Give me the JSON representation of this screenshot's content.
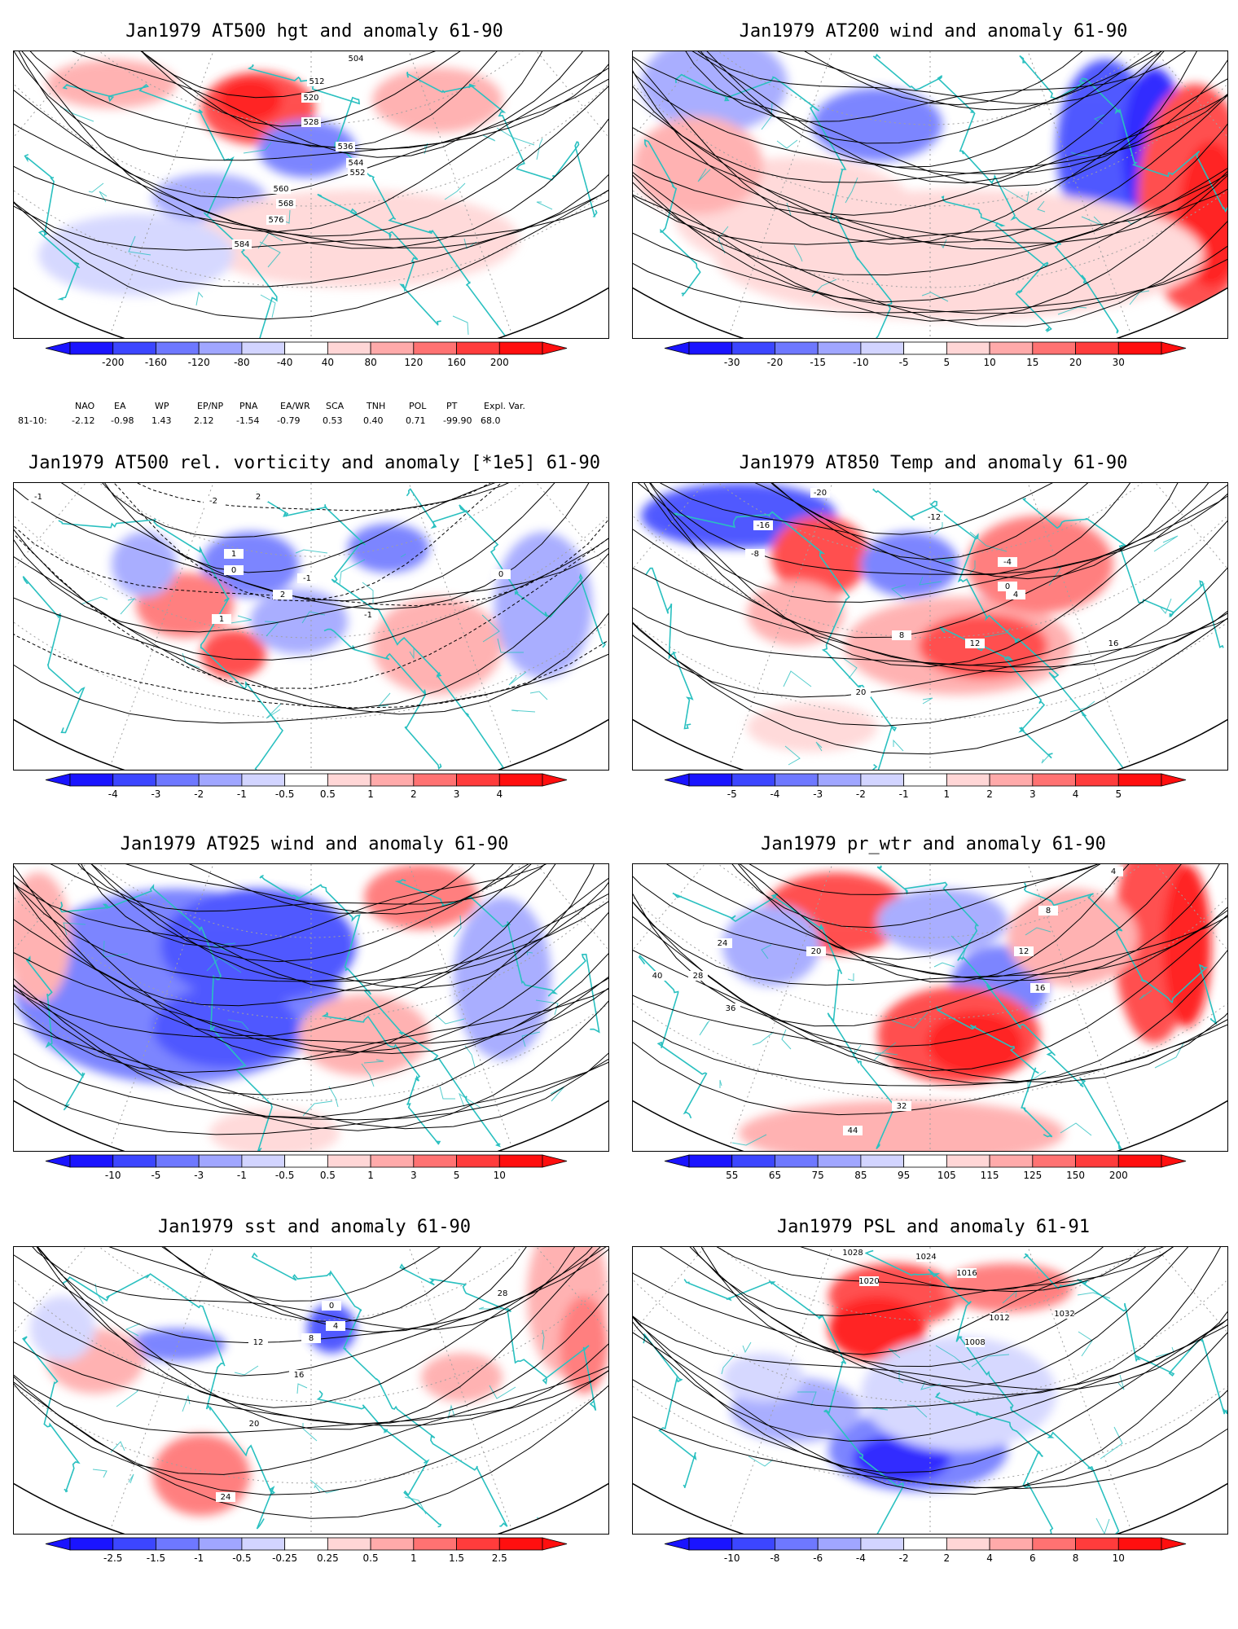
{
  "panels": [
    {
      "title": "Jan1979 AT500 hgt and anomaly 61-90",
      "colorbar": [
        "-200",
        "-160",
        "-120",
        "-80",
        "-40",
        "40",
        "80",
        "120",
        "160",
        "200"
      ],
      "contour_labels": [
        "504",
        "512",
        "520",
        "528",
        "536",
        "544",
        "552",
        "560",
        "568",
        "576",
        "584"
      ]
    },
    {
      "title": "Jan1979 AT200 wind and anomaly 61-90",
      "colorbar": [
        "-30",
        "-20",
        "-15",
        "-10",
        "-5",
        "5",
        "10",
        "15",
        "20",
        "30"
      ],
      "contour_labels": []
    },
    {
      "title": "Jan1979 AT500 rel. vorticity and anomaly [*1e5] 61-90",
      "colorbar": [
        "-4",
        "-3",
        "-2",
        "-1",
        "-0.5",
        "0.5",
        "1",
        "2",
        "3",
        "4"
      ],
      "contour_labels": [
        "-1",
        "-2",
        "2",
        "1",
        "0",
        "-1",
        "2",
        "1",
        "-1",
        "0"
      ]
    },
    {
      "title": "Jan1979 AT850 Temp and anomaly 61-90",
      "colorbar": [
        "-5",
        "-4",
        "-3",
        "-2",
        "-1",
        "1",
        "2",
        "3",
        "4",
        "5"
      ],
      "contour_labels": [
        "-20",
        "-16",
        "-12",
        "-8",
        "-4",
        "0",
        "4",
        "8",
        "12",
        "16",
        "20"
      ]
    },
    {
      "title": "Jan1979 AT925 wind and anomaly 61-90",
      "colorbar": [
        "-10",
        "-5",
        "-3",
        "-1",
        "-0.5",
        "0.5",
        "1",
        "3",
        "5",
        "10"
      ],
      "contour_labels": []
    },
    {
      "title": "Jan1979 pr_wtr and anomaly 61-90",
      "colorbar": [
        "55",
        "65",
        "75",
        "85",
        "95",
        "105",
        "115",
        "125",
        "150",
        "200"
      ],
      "contour_labels": [
        "4",
        "8",
        "12",
        "16",
        "20",
        "24",
        "28",
        "32",
        "36",
        "40",
        "44"
      ]
    },
    {
      "title": "Jan1979 sst and anomaly 61-90",
      "colorbar": [
        "-2.5",
        "-1.5",
        "-1",
        "-0.5",
        "-0.25",
        "0.25",
        "0.5",
        "1",
        "1.5",
        "2.5"
      ],
      "contour_labels": [
        "0",
        "4",
        "8",
        "12",
        "16",
        "20",
        "24",
        "28"
      ]
    },
    {
      "title": "Jan1979 PSL and anomaly 61-91",
      "colorbar": [
        "-10",
        "-8",
        "-6",
        "-4",
        "-2",
        "2",
        "4",
        "6",
        "8",
        "10"
      ],
      "contour_labels": [
        "1008",
        "1012",
        "1016",
        "1020",
        "1024",
        "1028",
        "1032"
      ]
    }
  ],
  "indices": {
    "headers": [
      "NAO",
      "EA",
      "WP",
      "EP/NP",
      "PNA",
      "EA/WR",
      "SCA",
      "TNH",
      "POL",
      "PT",
      "Expl. Var."
    ],
    "row_label": "81-10:",
    "values": [
      "-2.12",
      "-0.98",
      "1.43",
      "2.12",
      "-1.54",
      "-0.79",
      "0.53",
      "0.40",
      "0.71",
      "-99.90",
      "68.0"
    ]
  },
  "colors": {
    "scale": [
      "#1a14ff",
      "#3c46ff",
      "#6e78ff",
      "#a0a6ff",
      "#d2d4ff",
      "#ffffff",
      "#ffd6d6",
      "#ffaaaa",
      "#ff7272",
      "#ff3c3c",
      "#ff0f0f"
    ],
    "coast": "#2ac0c0",
    "contour": "#000000",
    "grid": "#a0a0a0"
  }
}
